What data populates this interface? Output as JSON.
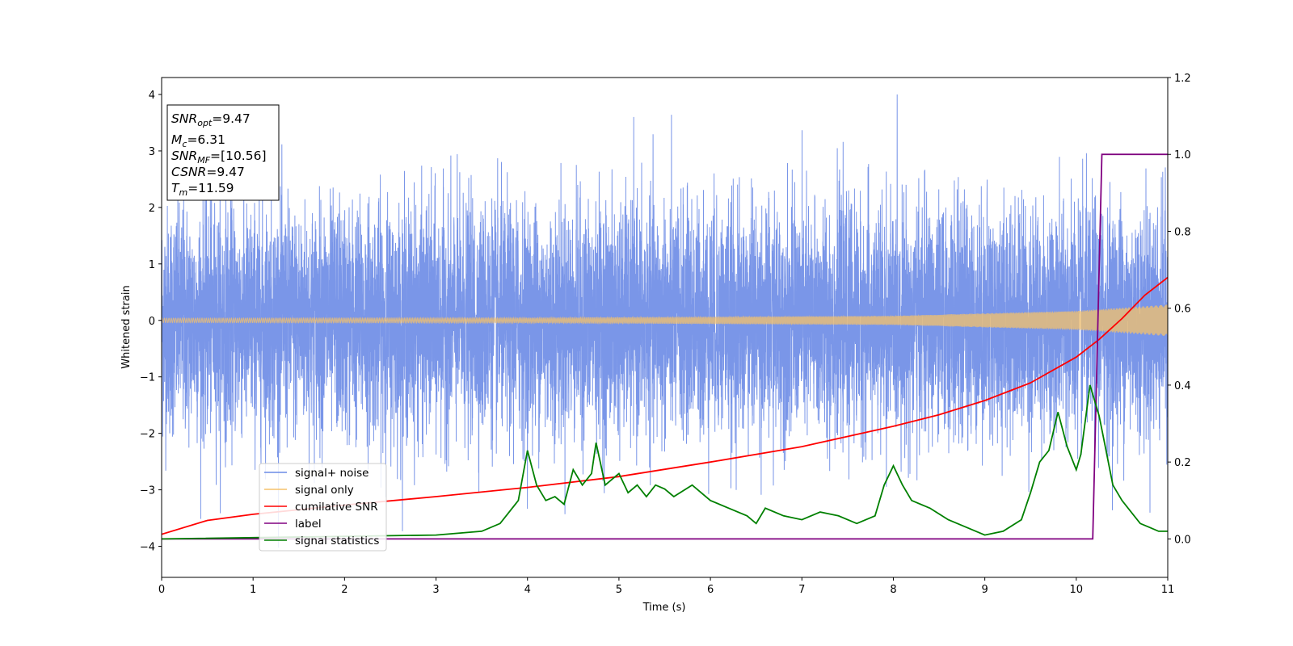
{
  "chart_data": {
    "type": "line",
    "title": "",
    "xlabel": "Time (s)",
    "ylabel": "Whitened strain",
    "xlim": [
      0,
      11
    ],
    "ylim": [
      -4.55,
      4.3
    ],
    "y2lim": [
      -0.1,
      1.2
    ],
    "xticks": [
      "0",
      "1",
      "2",
      "3",
      "4",
      "5",
      "6",
      "7",
      "8",
      "9",
      "10",
      "11"
    ],
    "yticks": [
      "4",
      "3",
      "2",
      "1",
      "0",
      "−1",
      "−2",
      "−3",
      "−4"
    ],
    "y2ticks": [
      "1.2",
      "1.0",
      "0.8",
      "0.6",
      "0.4",
      "0.2",
      "0.0"
    ],
    "grid": false,
    "legend_position": "lower-left",
    "info_box": {
      "snr_opt": "=9.47",
      "mc": "=6.31",
      "snr_mf": "=[10.56]",
      "csnr": "=9.47",
      "tm": "=11.59"
    },
    "series": [
      {
        "name": "signal+ noise",
        "axis": "left",
        "color": "#6b8be6",
        "description": "whitened strain: Gaussian noise with unit variance plus signal",
        "noise_std": 1.0
      },
      {
        "name": "signal only",
        "axis": "left",
        "color": "#f5c26b",
        "description": "chirp signal with growing amplitude",
        "amplitude_points": {
          "x": [
            0,
            4,
            8,
            10,
            11
          ],
          "y": [
            0.04,
            0.045,
            0.08,
            0.17,
            0.28
          ]
        }
      },
      {
        "name": "cumilative SNR",
        "axis": "right",
        "color": "#ff0000",
        "x": [
          0,
          0.5,
          1,
          2,
          3,
          4,
          5,
          6,
          7,
          8,
          8.5,
          9,
          9.5,
          10,
          10.25,
          10.5,
          10.75,
          11
        ],
        "y": [
          0.012,
          0.048,
          0.064,
          0.088,
          0.11,
          0.134,
          0.162,
          0.2,
          0.24,
          0.293,
          0.323,
          0.36,
          0.406,
          0.473,
          0.519,
          0.573,
          0.634,
          0.68
        ]
      },
      {
        "name": "label",
        "axis": "right",
        "color": "#800080",
        "x": [
          0,
          10.18,
          10.28,
          11
        ],
        "y": [
          0,
          0,
          1,
          1
        ]
      },
      {
        "name": "signal statistics",
        "axis": "right",
        "color": "#008000",
        "x": [
          0,
          3.0,
          3.5,
          3.7,
          3.9,
          4.0,
          4.1,
          4.2,
          4.3,
          4.4,
          4.5,
          4.6,
          4.7,
          4.75,
          4.85,
          5.0,
          5.1,
          5.2,
          5.3,
          5.4,
          5.5,
          5.6,
          5.8,
          6.0,
          6.2,
          6.4,
          6.5,
          6.6,
          6.8,
          7.0,
          7.2,
          7.4,
          7.6,
          7.8,
          7.9,
          8.0,
          8.1,
          8.2,
          8.4,
          8.6,
          8.8,
          9.0,
          9.2,
          9.4,
          9.5,
          9.6,
          9.7,
          9.8,
          9.9,
          10.0,
          10.05,
          10.15,
          10.25,
          10.3,
          10.4,
          10.5,
          10.6,
          10.7,
          10.8,
          10.9,
          11.0
        ],
        "y": [
          0,
          0.01,
          0.02,
          0.04,
          0.1,
          0.23,
          0.14,
          0.1,
          0.11,
          0.09,
          0.18,
          0.14,
          0.17,
          0.25,
          0.14,
          0.17,
          0.12,
          0.14,
          0.11,
          0.14,
          0.13,
          0.11,
          0.14,
          0.1,
          0.08,
          0.06,
          0.04,
          0.08,
          0.06,
          0.05,
          0.07,
          0.06,
          0.04,
          0.06,
          0.14,
          0.19,
          0.14,
          0.1,
          0.08,
          0.05,
          0.03,
          0.01,
          0.02,
          0.05,
          0.12,
          0.2,
          0.23,
          0.33,
          0.24,
          0.18,
          0.22,
          0.4,
          0.32,
          0.26,
          0.14,
          0.1,
          0.07,
          0.04,
          0.03,
          0.02,
          0.02
        ]
      }
    ]
  }
}
